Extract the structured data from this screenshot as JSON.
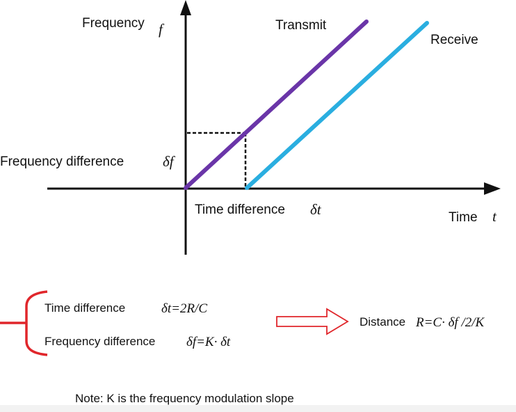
{
  "graph": {
    "y_axis_label": "Frequency",
    "y_axis_symbol": "f",
    "x_axis_label": "Time",
    "x_axis_symbol": "t",
    "transmit_label": "Transmit",
    "receive_label": "Receive",
    "freq_diff_label": "Frequency difference",
    "freq_diff_symbol": "δf",
    "time_diff_label": "Time difference",
    "time_diff_symbol": "δt",
    "colors": {
      "transmit": "#6a35a8",
      "receive": "#2aaee0",
      "axis": "#111111"
    }
  },
  "equations": {
    "time_label": "Time difference",
    "time_formula": "δt=2R/C",
    "freq_label": "Frequency difference",
    "freq_formula": "δf=K· δt",
    "distance_label": "Distance",
    "distance_formula": "R=C· δf /2/K",
    "accent_color": "#e0262b"
  },
  "note": "Note: K is the frequency modulation slope"
}
